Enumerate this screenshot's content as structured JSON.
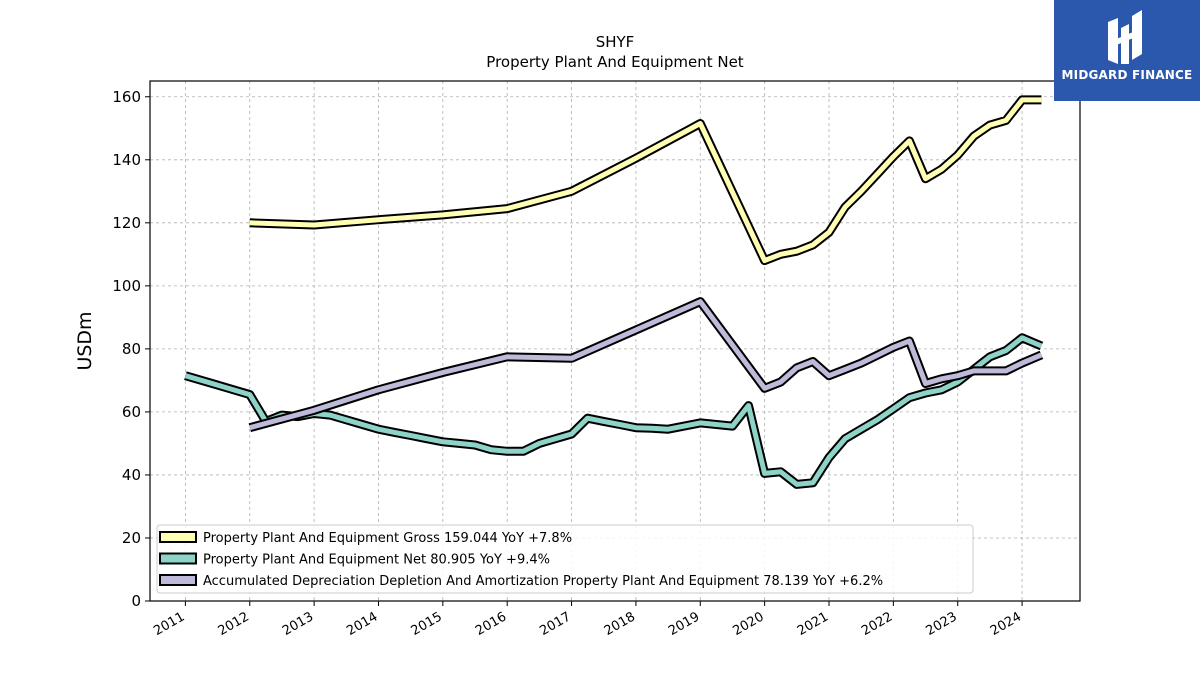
{
  "brand": {
    "name": "MIDGARD FINANCE",
    "color": "#2b58ad"
  },
  "chart_data": {
    "type": "line",
    "title": "SHYF",
    "subtitle": "Property Plant And Equipment Net",
    "ylabel": "USDm",
    "xlabel": "",
    "ylim": [
      0,
      165
    ],
    "xlim": [
      2010.45,
      2024.9
    ],
    "yticks": [
      0,
      20,
      40,
      60,
      80,
      100,
      120,
      140,
      160
    ],
    "xticks": [
      "2011",
      "2012",
      "2013",
      "2014",
      "2015",
      "2016",
      "2017",
      "2018",
      "2019",
      "2020",
      "2021",
      "2022",
      "2023",
      "2024"
    ],
    "grid": true,
    "legend_position": "lower-left",
    "series": [
      {
        "name": "Property Plant And Equipment Gross",
        "legend_label": "Property Plant And Equipment Gross  159.044 YoY +7.8%",
        "color": "#ffffb3",
        "x": [
          2012.0,
          2013.0,
          2014.0,
          2015.0,
          2016.0,
          2017.0,
          2018.0,
          2019.0,
          2020.0,
          2020.25,
          2020.5,
          2020.75,
          2021.0,
          2021.25,
          2021.5,
          2021.75,
          2022.0,
          2022.25,
          2022.5,
          2022.75,
          2023.0,
          2023.25,
          2023.5,
          2023.75,
          2024.0,
          2024.3
        ],
        "y": [
          120,
          119.3,
          121,
          122.5,
          124.5,
          130,
          140.5,
          151.5,
          108,
          110,
          111,
          113,
          117,
          125,
          130,
          135.5,
          141,
          146,
          134,
          137,
          141.5,
          147.5,
          151,
          152.5,
          159,
          159
        ]
      },
      {
        "name": "Property Plant And Equipment Net",
        "legend_label": "Property Plant And Equipment Net  80.905 YoY +9.4%",
        "color": "#8dd3c7",
        "x": [
          2011.0,
          2011.5,
          2012.0,
          2012.25,
          2012.5,
          2012.75,
          2013.0,
          2013.25,
          2013.5,
          2013.75,
          2014.0,
          2014.25,
          2014.5,
          2014.75,
          2015.0,
          2015.25,
          2015.5,
          2015.75,
          2016.0,
          2016.25,
          2016.5,
          2016.75,
          2017.0,
          2017.25,
          2017.5,
          2017.75,
          2018.0,
          2018.25,
          2018.5,
          2018.75,
          2019.0,
          2019.25,
          2019.5,
          2019.75,
          2020.0,
          2020.25,
          2020.5,
          2020.75,
          2021.0,
          2021.25,
          2021.5,
          2021.75,
          2022.0,
          2022.25,
          2022.5,
          2022.75,
          2023.0,
          2023.25,
          2023.5,
          2023.75,
          2024.0,
          2024.3
        ],
        "y": [
          71.5,
          68.5,
          65.5,
          57,
          59,
          58.5,
          59.5,
          59,
          57.5,
          56,
          54.5,
          53.5,
          52.5,
          51.5,
          50.5,
          50,
          49.5,
          48,
          47.5,
          47.5,
          50,
          51.5,
          53,
          58,
          57,
          56,
          55,
          54.8,
          54.5,
          55.5,
          56.5,
          56,
          55.5,
          62,
          40.5,
          41,
          37,
          37.5,
          45.5,
          51.5,
          54.5,
          57.5,
          61,
          64.5,
          66,
          67,
          69.5,
          73.5,
          77.5,
          79.5,
          83.5,
          80.9
        ]
      },
      {
        "name": "Accumulated Depreciation Depletion And Amortization Property Plant And Equipment",
        "legend_label": "Accumulated Depreciation Depletion And Amortization Property Plant And Equipment  78.139 YoY +6.2%",
        "color": "#bebada",
        "x": [
          2012.0,
          2013.0,
          2014.0,
          2015.0,
          2016.0,
          2017.0,
          2018.0,
          2019.0,
          2020.0,
          2020.25,
          2020.5,
          2020.75,
          2021.0,
          2021.25,
          2021.5,
          2021.75,
          2022.0,
          2022.25,
          2022.5,
          2022.75,
          2023.0,
          2023.25,
          2023.5,
          2023.75,
          2024.0,
          2024.3
        ],
        "y": [
          55,
          60.5,
          67,
          72.5,
          77.5,
          77,
          86,
          95,
          67.5,
          69.5,
          74,
          76,
          71.5,
          73.5,
          75.5,
          78,
          80.5,
          82.5,
          69,
          70.5,
          71.5,
          73,
          73,
          73,
          75.5,
          78.1
        ]
      }
    ]
  }
}
